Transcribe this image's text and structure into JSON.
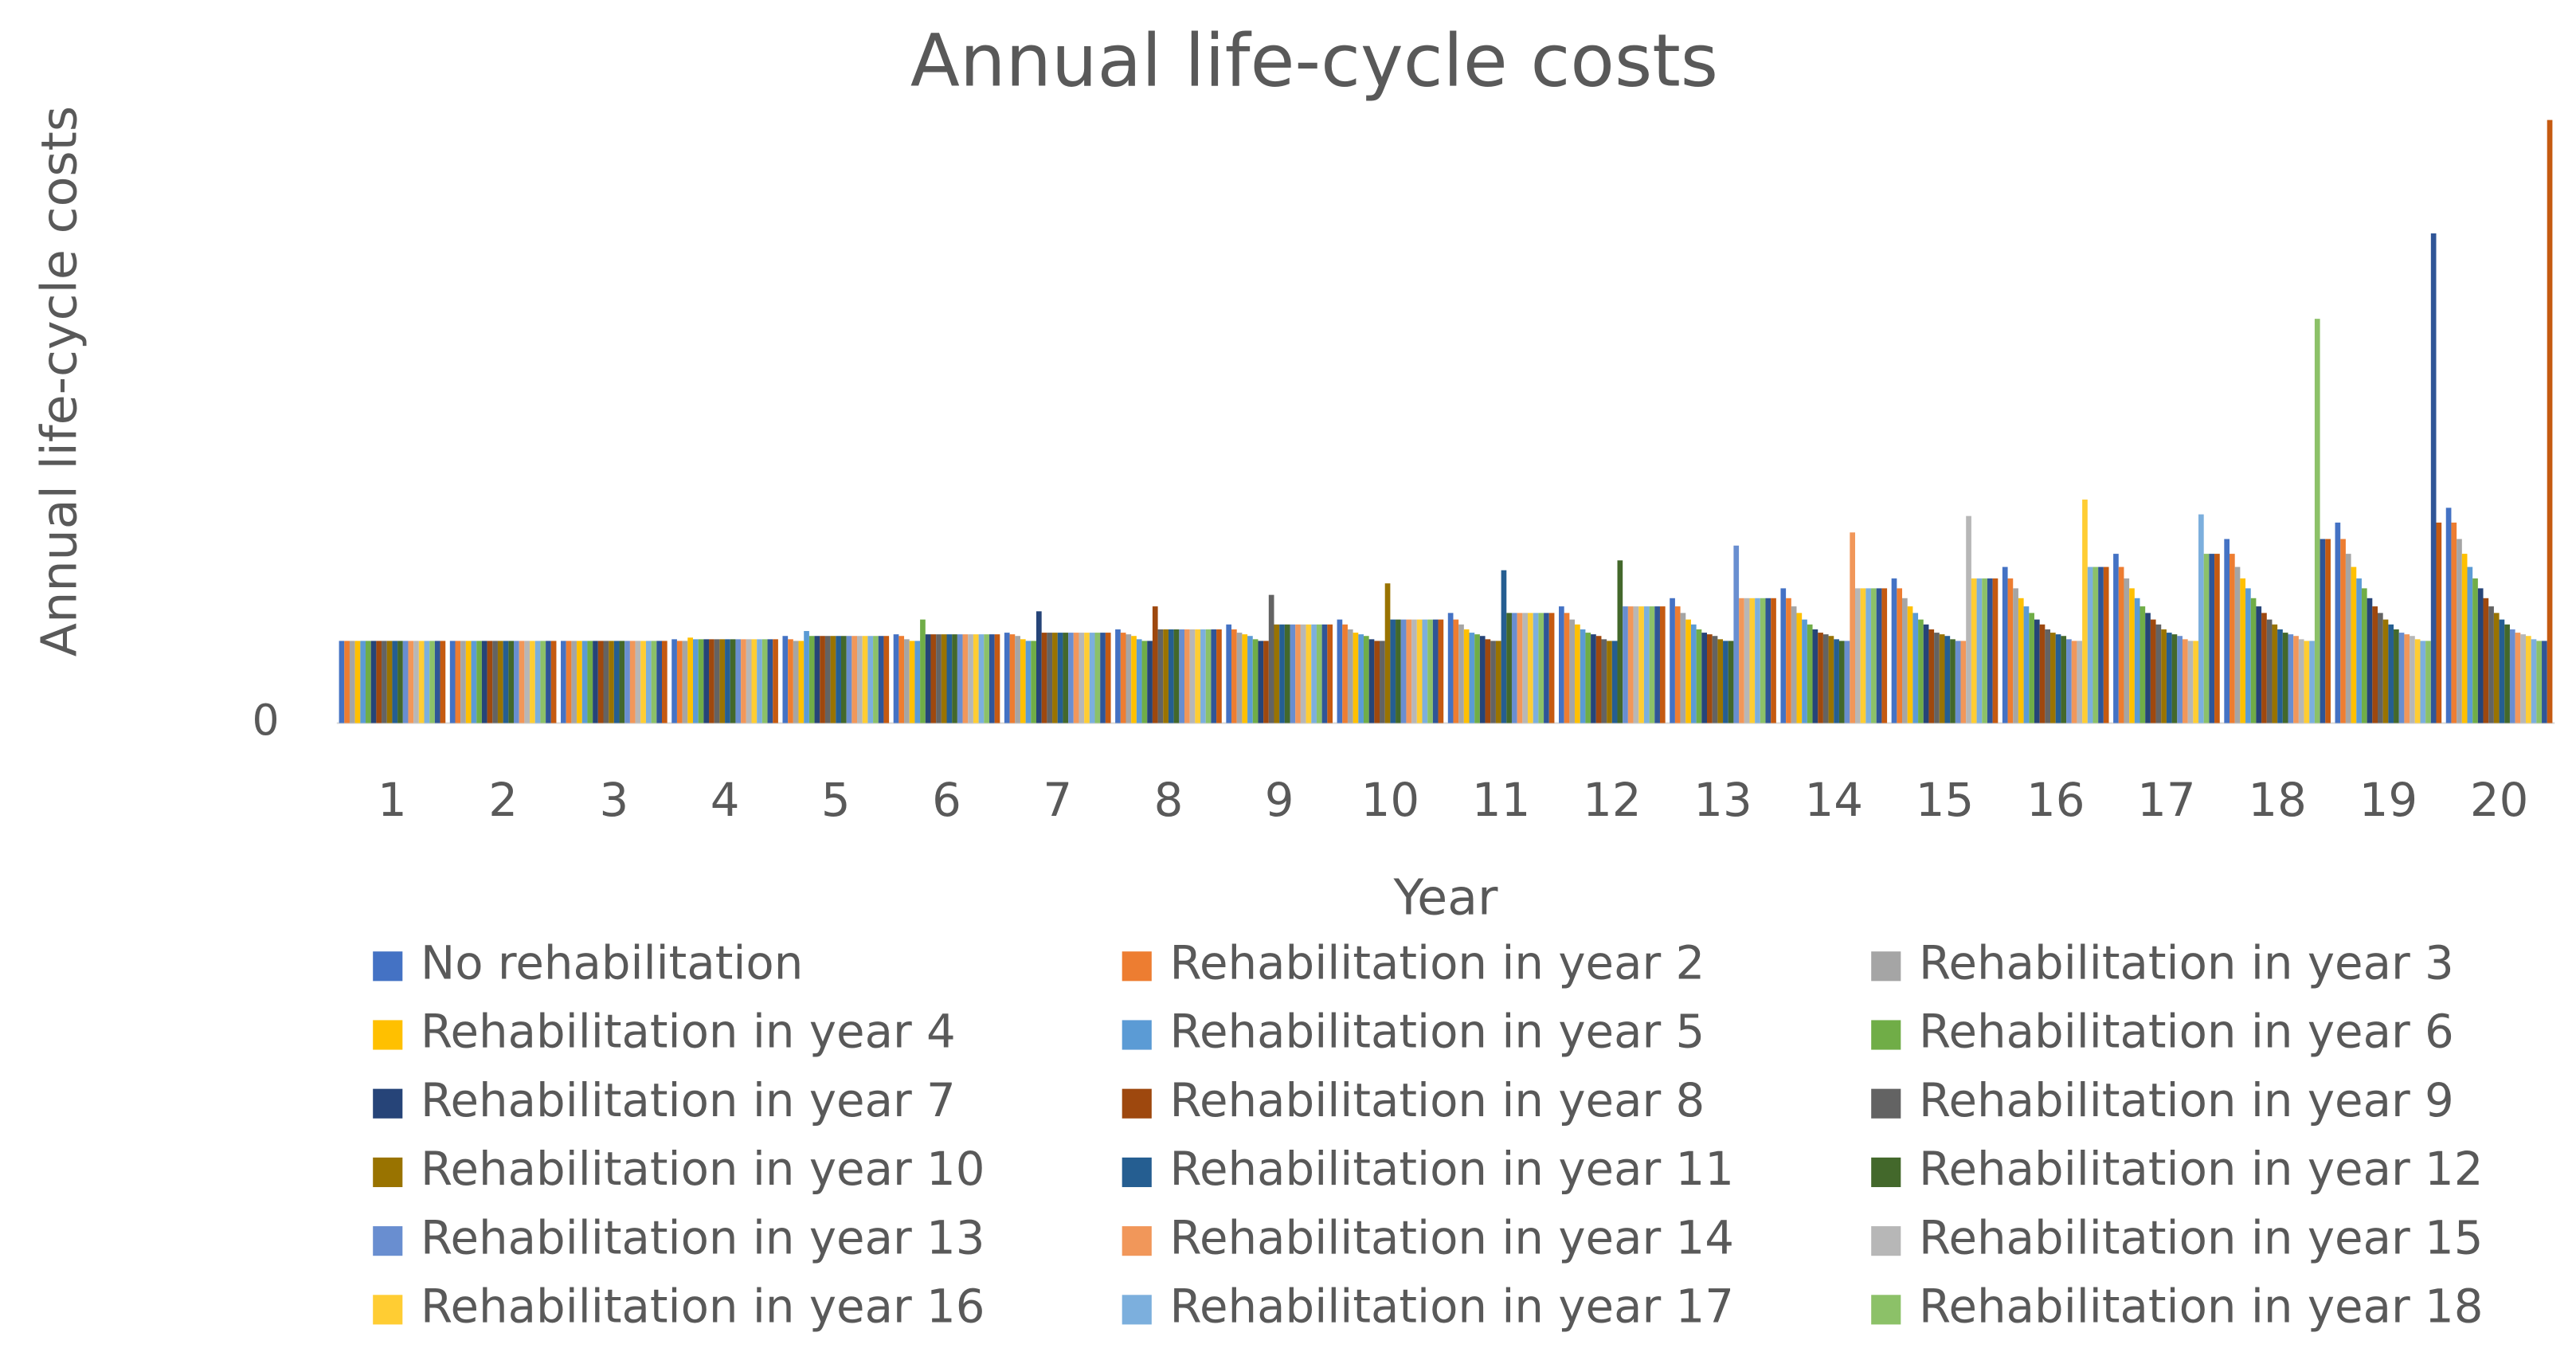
{
  "chart_data": {
    "type": "bar",
    "title": "Annual life-cycle costs",
    "y_label": "Annual life-cycle costs",
    "x_label": "Year",
    "categories": [
      "1",
      "2",
      "3",
      "4",
      "5",
      "6",
      "7",
      "8",
      "9",
      "10",
      "11",
      "12",
      "13",
      "14",
      "15",
      "16",
      "17",
      "18",
      "19",
      "20"
    ],
    "ylim": [
      0,
      370
    ],
    "yticks": [
      0
    ],
    "grid": false,
    "series": [
      {
        "name": "No rehabilitation",
        "color": "#4472C4",
        "values": [
          50,
          50,
          50,
          51,
          53,
          54,
          55,
          57,
          60,
          63,
          67,
          71,
          76,
          82,
          88,
          95,
          103,
          112,
          122,
          131
        ]
      },
      {
        "name": "Rehabilitation in year 2",
        "color": "#ED7D31",
        "values": [
          50,
          50,
          50,
          50,
          51,
          53,
          54,
          55,
          57,
          60,
          63,
          67,
          71,
          76,
          82,
          88,
          95,
          103,
          112,
          122
        ]
      },
      {
        "name": "Rehabilitation in year 3",
        "color": "#A5A5A5",
        "values": [
          50,
          50,
          50,
          50,
          50,
          51,
          53,
          54,
          55,
          57,
          60,
          63,
          67,
          71,
          76,
          82,
          88,
          95,
          103,
          112
        ]
      },
      {
        "name": "Rehabilitation in year 4",
        "color": "#FFC000",
        "values": [
          50,
          50,
          50,
          52,
          50,
          50,
          51,
          53,
          54,
          55,
          57,
          60,
          63,
          67,
          71,
          76,
          82,
          88,
          95,
          103
        ]
      },
      {
        "name": "Rehabilitation in year 5",
        "color": "#5B9BD5",
        "values": [
          50,
          50,
          50,
          51,
          56,
          50,
          50,
          51,
          53,
          54,
          55,
          57,
          60,
          63,
          67,
          71,
          76,
          82,
          88,
          95
        ]
      },
      {
        "name": "Rehabilitation in year 6",
        "color": "#70AD47",
        "values": [
          50,
          50,
          50,
          51,
          53,
          63,
          50,
          50,
          51,
          53,
          54,
          55,
          57,
          60,
          63,
          67,
          71,
          76,
          82,
          88
        ]
      },
      {
        "name": "Rehabilitation in year 7",
        "color": "#264478",
        "values": [
          50,
          50,
          50,
          51,
          53,
          54,
          68,
          50,
          50,
          51,
          53,
          54,
          55,
          57,
          60,
          63,
          67,
          71,
          76,
          82
        ]
      },
      {
        "name": "Rehabilitation in year 8",
        "color": "#9E480E",
        "values": [
          50,
          50,
          50,
          51,
          53,
          54,
          55,
          71,
          50,
          50,
          51,
          53,
          54,
          55,
          57,
          60,
          63,
          67,
          71,
          76
        ]
      },
      {
        "name": "Rehabilitation in year 9",
        "color": "#636363",
        "values": [
          50,
          50,
          50,
          51,
          53,
          54,
          55,
          57,
          78,
          50,
          50,
          51,
          53,
          54,
          55,
          57,
          60,
          63,
          67,
          71
        ]
      },
      {
        "name": "Rehabilitation in year 10",
        "color": "#997300",
        "values": [
          50,
          50,
          50,
          51,
          53,
          54,
          55,
          57,
          60,
          85,
          50,
          50,
          51,
          53,
          54,
          55,
          57,
          60,
          63,
          67
        ]
      },
      {
        "name": "Rehabilitation in year 11",
        "color": "#255E91",
        "values": [
          50,
          50,
          50,
          51,
          53,
          54,
          55,
          57,
          60,
          63,
          93,
          50,
          50,
          51,
          53,
          54,
          55,
          57,
          60,
          63
        ]
      },
      {
        "name": "Rehabilitation in year 12",
        "color": "#43682B",
        "values": [
          50,
          50,
          50,
          51,
          53,
          54,
          55,
          57,
          60,
          63,
          67,
          99,
          50,
          50,
          51,
          53,
          54,
          55,
          57,
          60
        ]
      },
      {
        "name": "Rehabilitation in year 13",
        "color": "#698ED0",
        "values": [
          50,
          50,
          50,
          51,
          53,
          54,
          55,
          57,
          60,
          63,
          67,
          71,
          108,
          50,
          50,
          51,
          53,
          54,
          55,
          57
        ]
      },
      {
        "name": "Rehabilitation in year 14",
        "color": "#F1975A",
        "values": [
          50,
          50,
          50,
          51,
          53,
          54,
          55,
          57,
          60,
          63,
          67,
          71,
          76,
          116,
          50,
          50,
          51,
          53,
          54,
          55
        ]
      },
      {
        "name": "Rehabilitation in year 15",
        "color": "#B7B7B7",
        "values": [
          50,
          50,
          50,
          51,
          53,
          54,
          55,
          57,
          60,
          63,
          67,
          71,
          76,
          82,
          126,
          50,
          50,
          51,
          53,
          54
        ]
      },
      {
        "name": "Rehabilitation in year 16",
        "color": "#FFCD33",
        "values": [
          50,
          50,
          50,
          51,
          53,
          54,
          55,
          57,
          60,
          63,
          67,
          71,
          76,
          82,
          88,
          136,
          50,
          50,
          51,
          53
        ]
      },
      {
        "name": "Rehabilitation in year 17",
        "color": "#7CAFDD",
        "values": [
          50,
          50,
          50,
          51,
          53,
          54,
          55,
          57,
          60,
          63,
          67,
          71,
          76,
          82,
          88,
          95,
          127,
          50,
          50,
          51
        ]
      },
      {
        "name": "Rehabilitation in year 18",
        "color": "#8CC168",
        "values": [
          50,
          50,
          50,
          51,
          53,
          54,
          55,
          57,
          60,
          63,
          67,
          71,
          76,
          82,
          88,
          95,
          103,
          246,
          50,
          50
        ]
      },
      {
        "color": "#2F5597",
        "values": [
          50,
          50,
          50,
          51,
          53,
          54,
          55,
          57,
          60,
          63,
          67,
          71,
          76,
          82,
          88,
          95,
          103,
          112,
          298,
          50
        ]
      },
      {
        "color": "#C55A11",
        "values": [
          50,
          50,
          50,
          51,
          53,
          54,
          55,
          57,
          60,
          63,
          67,
          71,
          76,
          82,
          88,
          95,
          103,
          112,
          122,
          367
        ]
      }
    ]
  }
}
